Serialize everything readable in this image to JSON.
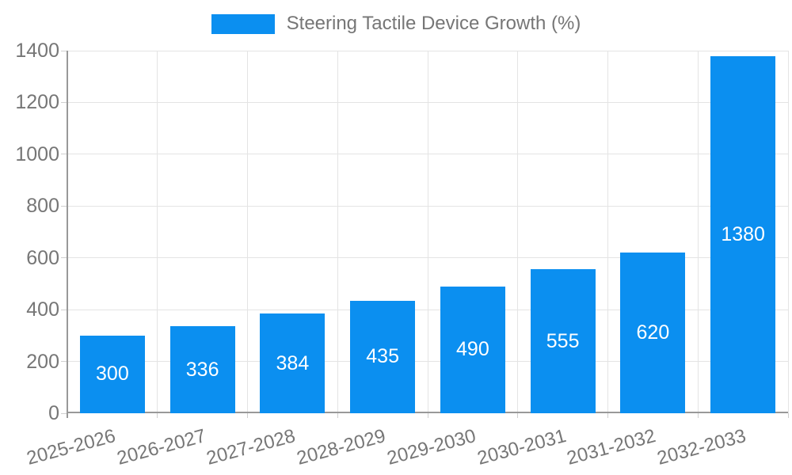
{
  "chart_data": {
    "type": "bar",
    "title": "Steering Tactile Device Growth (%)",
    "categories": [
      "2025-2026",
      "2026-2027",
      "2027-2028",
      "2028-2029",
      "2029-2030",
      "2030-2031",
      "2031-2032",
      "2032-2033"
    ],
    "values": [
      300,
      336,
      384,
      435,
      490,
      555,
      620,
      1380
    ],
    "xlabel": "",
    "ylabel": "",
    "ylim": [
      0,
      1400
    ],
    "ytick_step": 200,
    "yticks": [
      0,
      200,
      400,
      600,
      800,
      1000,
      1200,
      1400
    ],
    "grid": true,
    "legend_position": "top",
    "value_label_position": "inside-center",
    "x_label_rotation_deg": -15,
    "colors": {
      "bar": "#0b8ff0",
      "grid": "#e4e4e4",
      "tick": "#cfcfcf",
      "axis": "#999999",
      "label": "#767676",
      "value_label": "#ffffff",
      "background": "#ffffff"
    }
  }
}
